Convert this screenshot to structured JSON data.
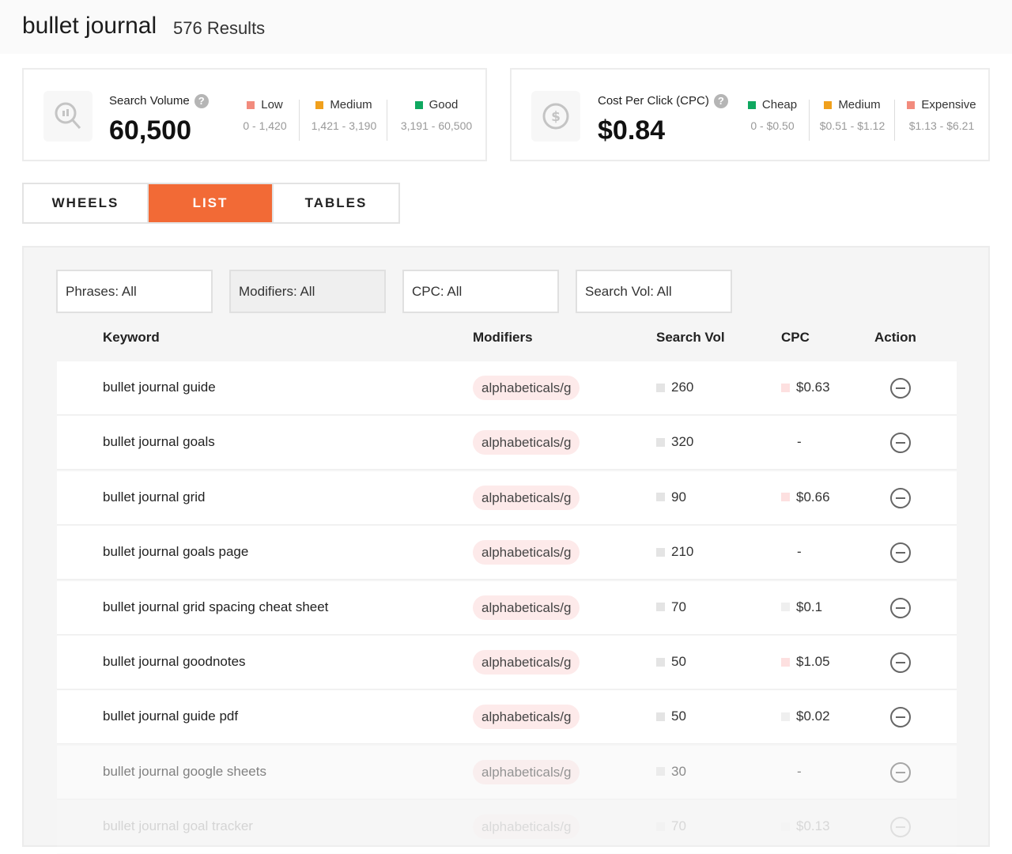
{
  "header": {
    "query": "bullet journal",
    "results": "576 Results"
  },
  "search_volume": {
    "label": "Search Volume",
    "value": "60,500",
    "icon": "search-chart-icon",
    "legend": [
      {
        "name": "Low",
        "range": "0 - 1,420",
        "color": "#f28b7d"
      },
      {
        "name": "Medium",
        "range": "1,421 - 3,190",
        "color": "#f0a01c"
      },
      {
        "name": "Good",
        "range": "3,191 - 60,500",
        "color": "#0fa860"
      }
    ]
  },
  "cpc": {
    "label": "Cost Per Click (CPC)",
    "value": "$0.84",
    "icon": "dollar-coin-icon",
    "legend": [
      {
        "name": "Cheap",
        "range": "0 - $0.50",
        "color": "#0fa860"
      },
      {
        "name": "Medium",
        "range": "$0.51 - $1.12",
        "color": "#f0a01c"
      },
      {
        "name": "Expensive",
        "range": "$1.13 - $6.21",
        "color": "#f28b7d"
      }
    ]
  },
  "tabs": [
    {
      "label": "WHEELS"
    },
    {
      "label": "LIST",
      "active": true
    },
    {
      "label": "TABLES"
    }
  ],
  "filters": [
    {
      "label": "Phrases: All"
    },
    {
      "label": "Modifiers: All"
    },
    {
      "label": "CPC: All"
    },
    {
      "label": "Search Vol: All"
    }
  ],
  "columns": {
    "keyword": "Keyword",
    "modifiers": "Modifiers",
    "search_vol": "Search Vol",
    "cpc": "CPC",
    "action": "Action"
  },
  "rows": [
    {
      "keyword": "bullet journal guide",
      "modifier": "alphabeticals/g",
      "search_vol": "260",
      "cpc": "$0.63"
    },
    {
      "keyword": "bullet journal goals",
      "modifier": "alphabeticals/g",
      "search_vol": "320",
      "cpc": "-"
    },
    {
      "keyword": "bullet journal grid",
      "modifier": "alphabeticals/g",
      "search_vol": "90",
      "cpc": "$0.66"
    },
    {
      "keyword": "bullet journal goals page",
      "modifier": "alphabeticals/g",
      "search_vol": "210",
      "cpc": "-"
    },
    {
      "keyword": "bullet journal grid spacing cheat sheet",
      "modifier": "alphabeticals/g",
      "search_vol": "70",
      "cpc": "$0.1"
    },
    {
      "keyword": "bullet journal goodnotes",
      "modifier": "alphabeticals/g",
      "search_vol": "50",
      "cpc": "$1.05"
    },
    {
      "keyword": "bullet journal guide pdf",
      "modifier": "alphabeticals/g",
      "search_vol": "50",
      "cpc": "$0.02"
    },
    {
      "keyword": "bullet journal google sheets",
      "modifier": "alphabeticals/g",
      "search_vol": "30",
      "cpc": "-"
    },
    {
      "keyword": "bullet journal goal tracker",
      "modifier": "alphabeticals/g",
      "search_vol": "70",
      "cpc": "$0.13"
    }
  ]
}
